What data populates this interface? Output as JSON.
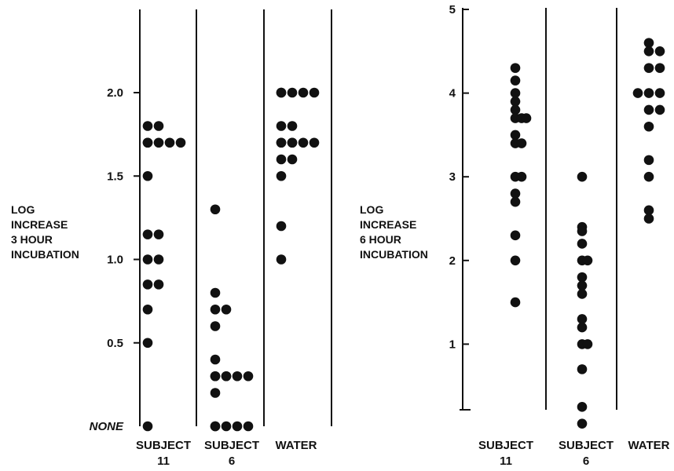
{
  "chart_data": [
    {
      "type": "scatter",
      "ylabel": "LOG\nINCREASE\n3 HOUR\nINCUBATION",
      "categories": [
        "SUBJECT\n11",
        "SUBJECT\n6",
        "WATER"
      ],
      "yticks": [
        {
          "value": 0,
          "label": "NONE"
        },
        {
          "value": 0.5,
          "label": "0.5"
        },
        {
          "value": 1.0,
          "label": "1.0"
        },
        {
          "value": 1.5,
          "label": "1.5"
        },
        {
          "value": 2.0,
          "label": "2.0"
        }
      ],
      "ylim": [
        0,
        2.0
      ],
      "series": [
        {
          "category": "SUBJECT\n11",
          "values": [
            1.8,
            1.8,
            1.7,
            1.7,
            1.7,
            1.7,
            1.7,
            1.5,
            1.15,
            1.15,
            1.0,
            1.0,
            0.85,
            0.85,
            0.7,
            0.5,
            0.0
          ]
        },
        {
          "category": "SUBJECT\n6",
          "values": [
            1.3,
            0.8,
            0.7,
            0.7,
            0.6,
            0.4,
            0.3,
            0.3,
            0.3,
            0.3,
            0.3,
            0.3,
            0.2,
            0.0,
            0.0,
            0.0,
            0.0,
            0.0
          ]
        },
        {
          "category": "WATER",
          "values": [
            2.0,
            2.0,
            2.0,
            2.0,
            2.0,
            1.8,
            1.8,
            1.7,
            1.7,
            1.7,
            1.7,
            1.7,
            1.7,
            1.6,
            1.6,
            1.5,
            1.2,
            1.0
          ]
        }
      ]
    },
    {
      "type": "scatter",
      "ylabel": "LOG\nINCREASE\n6 HOUR\nINCUBATION",
      "categories": [
        "SUBJECT\n11",
        "SUBJECT\n6",
        "WATER"
      ],
      "yticks": [
        {
          "value": 1,
          "label": "1"
        },
        {
          "value": 2,
          "label": "2"
        },
        {
          "value": 3,
          "label": "3"
        },
        {
          "value": 4,
          "label": "4"
        },
        {
          "value": 5,
          "label": "5"
        }
      ],
      "ylim": [
        0,
        5
      ],
      "series": [
        {
          "category": "SUBJECT\n11",
          "values": [
            4.3,
            4.15,
            4.0,
            3.9,
            3.8,
            3.7,
            3.7,
            3.7,
            3.5,
            3.4,
            3.4,
            3.0,
            3.0,
            2.8,
            2.7,
            2.3,
            2.0,
            1.5
          ]
        },
        {
          "category": "SUBJECT\n6",
          "values": [
            3.0,
            2.4,
            2.35,
            2.2,
            2.0,
            2.0,
            1.8,
            1.7,
            1.6,
            1.3,
            1.2,
            1.0,
            1.0,
            0.7,
            0.25,
            0.05
          ]
        },
        {
          "category": "WATER",
          "values": [
            4.6,
            4.5,
            4.5,
            4.3,
            4.3,
            4.0,
            4.0,
            4.0,
            3.8,
            3.8,
            3.6,
            3.2,
            3.0,
            2.6,
            2.5
          ]
        }
      ]
    }
  ]
}
